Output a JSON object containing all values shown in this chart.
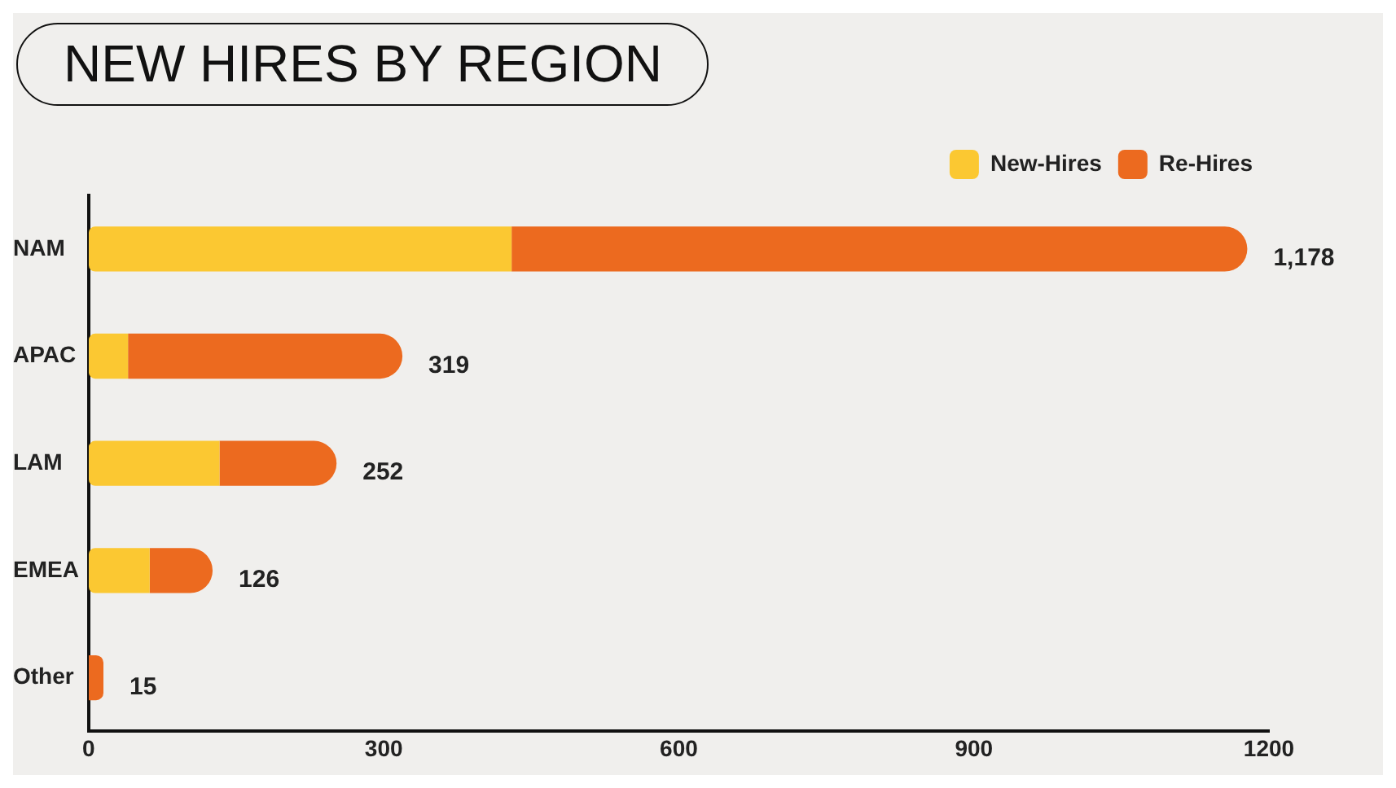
{
  "chart_data": {
    "type": "bar",
    "title": "NEW HIRES BY REGION",
    "orientation": "horizontal",
    "stacked": true,
    "categories": [
      "NAM",
      "APAC",
      "LAM",
      "EMEA",
      "Other"
    ],
    "series": [
      {
        "name": "New-Hires",
        "color": "#fbc832",
        "values": [
          430,
          40,
          133,
          62,
          0
        ]
      },
      {
        "name": "Re-Hires",
        "color": "#ec6a1f",
        "values": [
          748,
          279,
          119,
          64,
          15
        ]
      }
    ],
    "totals": [
      "1,178",
      "319",
      "252",
      "126",
      "15"
    ],
    "xlim": [
      0,
      1200
    ],
    "xticks": [
      0,
      300,
      600,
      900,
      1200
    ],
    "grid": false,
    "legend": "top right"
  }
}
